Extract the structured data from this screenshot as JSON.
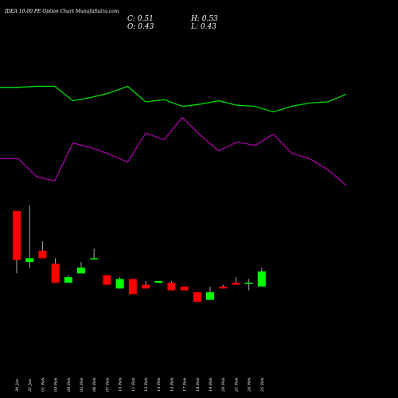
{
  "chart_data": {
    "type": "candlestick",
    "title": "IDEA 10.00 PE Option Chart MunafaSutra.com",
    "ohlc_text": [
      "C: 0.51",
      "H: 0.53",
      "O: 0.43",
      "L: 0.43"
    ],
    "categories": [
      "30 Jan",
      "31 Jan",
      "01 Feb",
      "03 Feb",
      "04 Feb",
      "05 Feb",
      "06 Feb",
      "07 Feb",
      "10 Feb",
      "11 Feb",
      "12 Feb",
      "13 Feb",
      "14 Feb",
      "17 Feb",
      "18 Feb",
      "19 Feb",
      "20 Feb",
      "21 Feb",
      "24 Feb",
      "25 Feb"
    ],
    "open": [
      0.83,
      0.56,
      0.62,
      0.55,
      0.45,
      0.5,
      0.58,
      0.49,
      0.42,
      0.47,
      0.44,
      0.45,
      0.45,
      0.43,
      0.4,
      0.36,
      0.43,
      0.45,
      0.45,
      0.43
    ],
    "high": [
      0.83,
      0.86,
      0.67,
      0.58,
      0.49,
      0.56,
      0.63,
      0.49,
      0.48,
      0.47,
      0.46,
      0.46,
      0.46,
      0.43,
      0.4,
      0.43,
      0.44,
      0.48,
      0.47,
      0.53
    ],
    "low": [
      0.5,
      0.53,
      0.58,
      0.45,
      0.45,
      0.5,
      0.58,
      0.44,
      0.42,
      0.39,
      0.42,
      0.45,
      0.41,
      0.41,
      0.35,
      0.36,
      0.42,
      0.44,
      0.41,
      0.43
    ],
    "close": [
      0.57,
      0.58,
      0.58,
      0.45,
      0.48,
      0.53,
      0.58,
      0.44,
      0.47,
      0.39,
      0.42,
      0.46,
      0.41,
      0.41,
      0.35,
      0.4,
      0.42,
      0.44,
      0.45,
      0.51
    ],
    "up_color": "#00ff00",
    "down_color": "#ff0000",
    "ylim": [
      0.3,
      0.9
    ],
    "lines": {
      "ylim": [
        0,
        100
      ],
      "series": [
        {
          "color": "#00dd00",
          "values": [
            93,
            93,
            94,
            94,
            81,
            84,
            88,
            94,
            80,
            82,
            76,
            78,
            81,
            77,
            76,
            71,
            76,
            79,
            80,
            87
          ]
        },
        {
          "color": "#aa00aa",
          "values": [
            29,
            29,
            13,
            9,
            43,
            39,
            33,
            26,
            52,
            46,
            66,
            50,
            36,
            44,
            41,
            51,
            34,
            29,
            19,
            5
          ]
        }
      ]
    }
  }
}
